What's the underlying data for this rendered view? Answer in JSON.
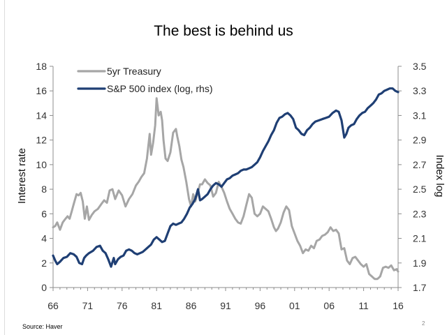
{
  "slide": {
    "source": "Source: Haver",
    "page_number": "2"
  },
  "chart_data": {
    "type": "line",
    "title": "The best is behind us",
    "ylabel": "Interest rate",
    "y2label": "Index log",
    "xlim": [
      66,
      116
    ],
    "ylim": [
      0,
      18
    ],
    "y2lim": [
      1.7,
      3.5
    ],
    "x_ticks": [
      "66",
      "71",
      "76",
      "81",
      "86",
      "91",
      "96",
      "01",
      "06",
      "11",
      "16"
    ],
    "y_ticks": [
      "0",
      "2",
      "4",
      "6",
      "8",
      "10",
      "12",
      "14",
      "16",
      "18"
    ],
    "y2_ticks": [
      "1.7",
      "1.9",
      "2.1",
      "2.3",
      "2.5",
      "2.7",
      "2.9",
      "3.1",
      "3.3",
      "3.5"
    ],
    "grid": false,
    "legend_position": "top-left",
    "series": [
      {
        "name": "5yr Treasury",
        "axis": "left",
        "color": "#a6a6a6",
        "x": [
          66.0,
          66.3,
          66.6,
          67.0,
          67.4,
          67.8,
          68.1,
          68.4,
          68.7,
          69.0,
          69.4,
          69.7,
          70.0,
          70.3,
          70.6,
          70.9,
          71.2,
          71.6,
          72.0,
          72.5,
          73.0,
          73.4,
          73.8,
          74.2,
          74.6,
          75.0,
          75.5,
          76.0,
          76.5,
          77.0,
          77.5,
          78.0,
          78.4,
          78.8,
          79.2,
          79.6,
          80.0,
          80.2,
          80.5,
          80.8,
          81.0,
          81.3,
          81.6,
          81.8,
          82.0,
          82.3,
          82.6,
          83.0,
          83.4,
          83.8,
          84.0,
          84.3,
          84.6,
          84.9,
          85.3,
          85.7,
          86.0,
          86.3,
          86.6,
          87.0,
          87.3,
          87.6,
          88.0,
          88.4,
          88.8,
          89.2,
          89.6,
          90.0,
          90.4,
          90.8,
          91.2,
          91.6,
          92.0,
          92.4,
          92.8,
          93.2,
          93.6,
          94.0,
          94.4,
          94.8,
          95.2,
          95.6,
          96.0,
          96.4,
          96.8,
          97.2,
          97.6,
          98.0,
          98.3,
          98.6,
          99.0,
          99.4,
          99.8,
          100.2,
          100.6,
          101.0,
          101.4,
          101.8,
          102.2,
          102.6,
          103.0,
          103.4,
          103.8,
          104.2,
          104.6,
          105.0,
          105.4,
          105.8,
          106.2,
          106.6,
          107.0,
          107.4,
          107.8,
          108.2,
          108.6,
          109.0,
          109.4,
          109.8,
          110.2,
          110.6,
          111.0,
          111.4,
          111.8,
          112.2,
          112.6,
          113.0,
          113.4,
          113.8,
          114.2,
          114.6,
          115.0,
          115.4,
          115.8,
          116.0
        ],
        "values": [
          4.9,
          5.0,
          5.3,
          4.7,
          5.3,
          5.6,
          5.8,
          5.6,
          6.2,
          6.8,
          7.6,
          7.5,
          7.7,
          7.0,
          5.6,
          6.6,
          5.5,
          5.9,
          6.2,
          6.4,
          6.8,
          7.1,
          6.9,
          7.9,
          8.0,
          7.2,
          7.9,
          7.5,
          6.6,
          7.2,
          7.6,
          8.3,
          8.6,
          9.0,
          9.3,
          10.5,
          12.5,
          10.8,
          11.8,
          13.2,
          15.4,
          14.0,
          14.3,
          13.6,
          12.0,
          10.5,
          10.3,
          11.0,
          12.6,
          12.9,
          12.3,
          11.5,
          10.4,
          9.8,
          8.6,
          7.2,
          6.6,
          7.6,
          7.0,
          7.8,
          8.4,
          8.4,
          8.8,
          8.5,
          8.3,
          7.4,
          7.7,
          8.6,
          8.2,
          7.7,
          7.0,
          6.4,
          6.0,
          5.6,
          5.3,
          5.2,
          5.8,
          6.7,
          7.6,
          7.3,
          6.0,
          5.8,
          6.0,
          6.6,
          6.4,
          6.2,
          5.6,
          4.9,
          4.6,
          4.8,
          5.3,
          6.1,
          6.6,
          6.3,
          5.0,
          4.4,
          3.8,
          3.4,
          2.8,
          3.1,
          3.0,
          3.4,
          3.2,
          3.8,
          3.9,
          4.2,
          4.3,
          4.5,
          4.9,
          4.6,
          4.7,
          4.4,
          3.1,
          3.2,
          2.2,
          1.9,
          2.4,
          2.5,
          2.2,
          1.9,
          1.7,
          1.9,
          1.1,
          0.9,
          0.7,
          0.7,
          0.9,
          1.6,
          1.7,
          1.6,
          1.8,
          1.4,
          1.5,
          1.3
        ],
        "values_note": "percent"
      },
      {
        "name": "S&P 500 index (log, rhs)",
        "axis": "right",
        "color": "#1f3f74",
        "x": [
          66.0,
          66.3,
          66.6,
          67.0,
          67.5,
          68.0,
          68.5,
          69.0,
          69.4,
          69.8,
          70.2,
          70.5,
          70.8,
          71.2,
          71.8,
          72.3,
          72.8,
          73.2,
          73.6,
          74.0,
          74.4,
          74.8,
          75.0,
          75.4,
          75.8,
          76.2,
          76.6,
          77.0,
          77.4,
          77.8,
          78.2,
          78.6,
          79.0,
          79.4,
          79.8,
          80.2,
          80.6,
          81.0,
          81.4,
          81.8,
          82.2,
          82.6,
          83.0,
          83.4,
          83.8,
          84.2,
          84.6,
          85.0,
          85.4,
          85.8,
          86.2,
          86.6,
          87.0,
          87.3,
          87.6,
          88.0,
          88.4,
          88.8,
          89.2,
          89.6,
          90.0,
          90.4,
          90.8,
          91.2,
          91.6,
          92.0,
          92.4,
          92.8,
          93.2,
          93.6,
          94.0,
          94.4,
          94.8,
          95.2,
          95.6,
          96.0,
          96.4,
          96.8,
          97.2,
          97.6,
          98.0,
          98.4,
          98.8,
          99.2,
          99.6,
          100.0,
          100.4,
          100.8,
          101.2,
          101.6,
          102.0,
          102.4,
          102.8,
          103.2,
          103.6,
          104.0,
          104.5,
          105.0,
          105.5,
          106.0,
          106.5,
          107.0,
          107.4,
          107.8,
          108.2,
          108.5,
          108.8,
          109.2,
          109.6,
          110.0,
          110.4,
          110.8,
          111.2,
          111.6,
          112.0,
          112.4,
          112.8,
          113.2,
          113.6,
          114.0,
          114.4,
          114.8,
          115.2,
          115.6,
          116.0
        ],
        "values": [
          1.96,
          1.92,
          1.89,
          1.91,
          1.94,
          1.95,
          1.98,
          1.97,
          1.95,
          1.9,
          1.89,
          1.94,
          1.96,
          1.98,
          2.0,
          2.03,
          2.04,
          2.0,
          1.98,
          1.93,
          1.87,
          1.94,
          1.89,
          1.93,
          1.95,
          1.96,
          2.0,
          2.01,
          2.0,
          1.98,
          1.97,
          1.98,
          1.99,
          2.01,
          2.03,
          2.05,
          2.09,
          2.11,
          2.09,
          2.07,
          2.08,
          2.14,
          2.2,
          2.22,
          2.21,
          2.22,
          2.23,
          2.26,
          2.3,
          2.35,
          2.38,
          2.42,
          2.5,
          2.41,
          2.42,
          2.44,
          2.46,
          2.5,
          2.53,
          2.55,
          2.54,
          2.52,
          2.55,
          2.58,
          2.59,
          2.61,
          2.62,
          2.63,
          2.65,
          2.66,
          2.66,
          2.67,
          2.68,
          2.7,
          2.72,
          2.76,
          2.81,
          2.85,
          2.89,
          2.94,
          2.98,
          3.04,
          3.08,
          3.09,
          3.11,
          3.12,
          3.1,
          3.07,
          3.0,
          2.98,
          2.95,
          2.94,
          2.98,
          3.0,
          3.03,
          3.05,
          3.06,
          3.07,
          3.08,
          3.09,
          3.12,
          3.14,
          3.13,
          3.06,
          2.92,
          2.95,
          3.0,
          3.02,
          3.03,
          3.07,
          3.1,
          3.12,
          3.13,
          3.16,
          3.18,
          3.2,
          3.23,
          3.27,
          3.28,
          3.3,
          3.31,
          3.32,
          3.32,
          3.3,
          3.29
        ],
        "values_note": "log10 index"
      }
    ]
  }
}
